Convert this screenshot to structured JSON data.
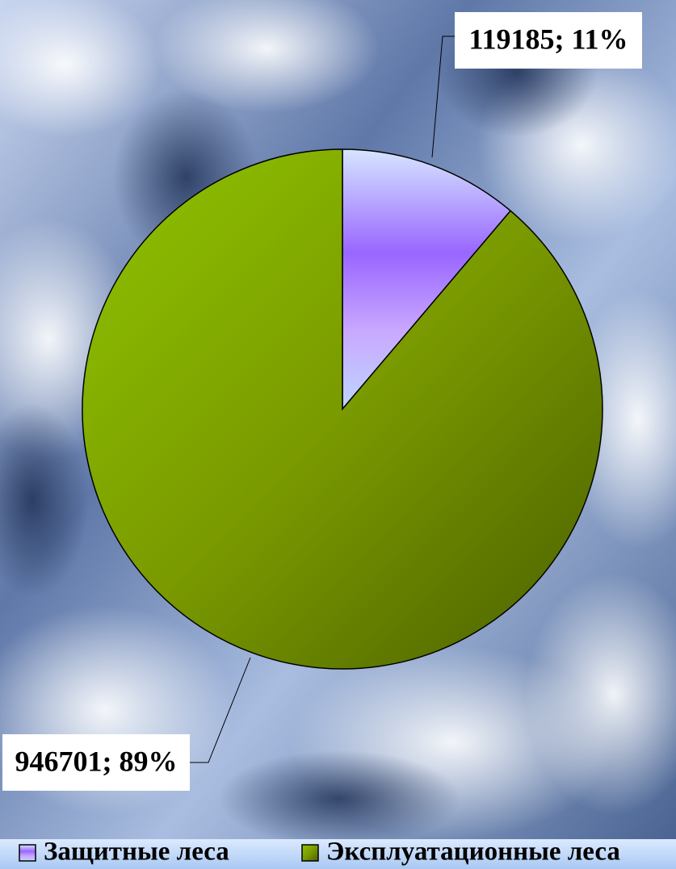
{
  "chart_data": {
    "type": "pie",
    "categories": [
      "Защитные леса",
      "Эксплуатационные леса"
    ],
    "values": [
      119185,
      946701
    ],
    "value_labels": [
      "119185; 11%",
      "946701; 89%"
    ],
    "colors": [
      "#9966ff",
      "#7a9a00"
    ],
    "legend": "bottom"
  }
}
